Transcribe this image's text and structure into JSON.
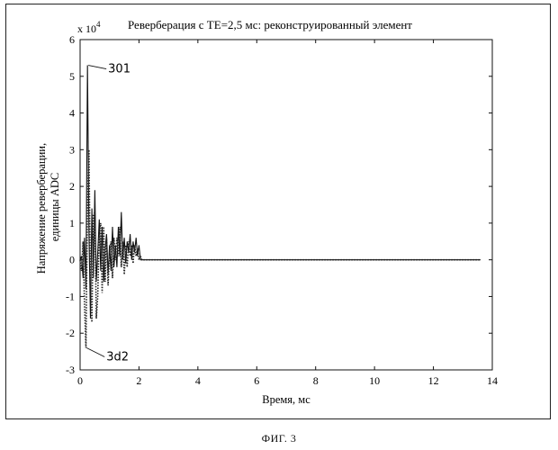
{
  "figure_caption": "ФИГ. 3",
  "chart_data": {
    "type": "line",
    "title": "Реверберация с TE=2,5 мс: реконструированный элемент",
    "xlabel": "Время, мс",
    "ylabel": [
      "Напряжение реверберации,",
      "единицы ADC"
    ],
    "y_multiplier": "x 10",
    "y_multiplier_exp": "4",
    "xlim": [
      0,
      14
    ],
    "ylim": [
      -3,
      6
    ],
    "xticks": [
      "0",
      "2",
      "4",
      "6",
      "8",
      "10",
      "12",
      "14"
    ],
    "yticks": [
      "-3",
      "-2",
      "-1",
      "0",
      "1",
      "2",
      "3",
      "4",
      "5",
      "6"
    ],
    "grid": false,
    "annotations": [
      {
        "text": "301",
        "target_series": "solid",
        "x": 0.28,
        "y": 5.3
      },
      {
        "text": "3d2",
        "target_series": "dotted",
        "x": 0.22,
        "y": -2.4
      }
    ],
    "series": [
      {
        "style": "solid",
        "color": "#111111",
        "x": [
          0.0,
          0.05,
          0.1,
          0.15,
          0.2,
          0.25,
          0.3,
          0.35,
          0.4,
          0.45,
          0.5,
          0.55,
          0.6,
          0.65,
          0.7,
          0.75,
          0.8,
          0.85,
          0.9,
          0.95,
          1.0,
          1.05,
          1.1,
          1.15,
          1.2,
          1.25,
          1.3,
          1.35,
          1.4,
          1.45,
          1.5,
          1.55,
          1.6,
          1.65,
          1.7,
          1.75,
          1.8,
          1.85,
          1.9,
          1.95,
          2.0,
          2.05,
          2.1,
          13.6
        ],
        "y": [
          0.0,
          0.1,
          -0.5,
          0.6,
          -0.8,
          5.3,
          0.8,
          -1.6,
          1.4,
          -0.5,
          1.9,
          -0.6,
          0.2,
          1.1,
          -0.3,
          0.9,
          -0.6,
          0.3,
          0.7,
          -0.4,
          0.4,
          -0.3,
          0.9,
          -0.2,
          0.4,
          -0.2,
          0.9,
          0.1,
          1.3,
          0.0,
          0.6,
          -0.1,
          0.5,
          0.2,
          0.7,
          0.0,
          0.5,
          0.2,
          0.6,
          0.1,
          0.4,
          0.0,
          0.0,
          0.0
        ]
      },
      {
        "style": "dotted",
        "color": "#222222",
        "x": [
          0.0,
          0.05,
          0.1,
          0.15,
          0.2,
          0.25,
          0.3,
          0.35,
          0.4,
          0.45,
          0.5,
          0.55,
          0.6,
          0.65,
          0.7,
          0.75,
          0.8,
          0.85,
          0.9,
          0.95,
          1.0,
          1.05,
          1.1,
          1.15,
          1.2,
          1.25,
          1.3,
          1.35,
          1.4,
          1.45,
          1.5,
          1.55,
          1.6,
          1.65,
          1.7,
          1.75,
          1.8,
          1.85,
          1.9,
          1.95,
          2.0,
          2.05,
          2.1,
          13.6
        ],
        "y": [
          0.0,
          -0.3,
          0.5,
          -1.2,
          -2.4,
          1.5,
          3.0,
          -0.8,
          -1.7,
          1.2,
          1.3,
          -1.6,
          -1.0,
          0.8,
          1.0,
          -0.9,
          0.9,
          -0.6,
          0.6,
          -0.7,
          0.2,
          0.5,
          -0.5,
          0.6,
          0.0,
          0.6,
          0.1,
          0.9,
          -0.2,
          0.5,
          -0.4,
          0.4,
          -0.2,
          0.5,
          0.1,
          0.4,
          -0.1,
          0.4,
          0.1,
          0.3,
          0.0,
          0.1,
          0.0,
          0.0
        ]
      }
    ]
  }
}
